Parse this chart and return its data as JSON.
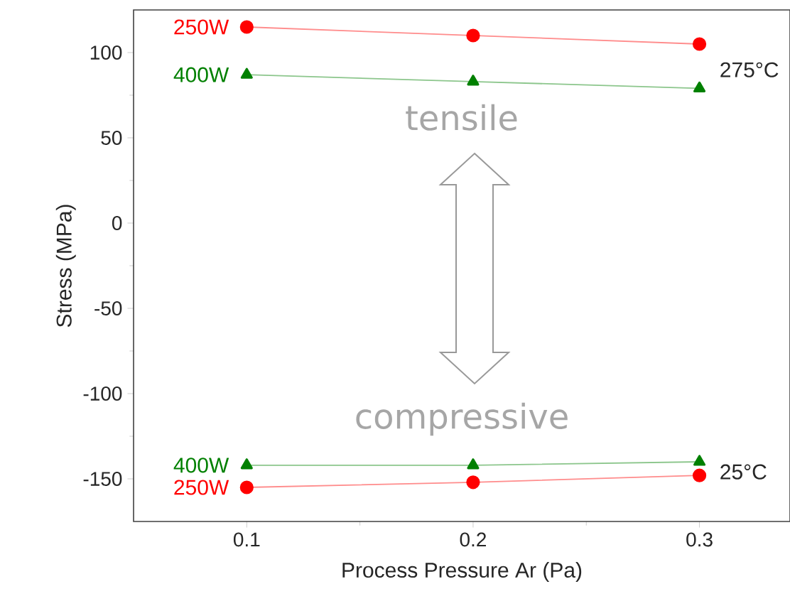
{
  "chart_data": {
    "type": "line",
    "xlabel": "Process Pressure Ar (Pa)",
    "ylabel": "Stress (MPa)",
    "x": [
      0.1,
      0.2,
      0.3
    ],
    "series": [
      {
        "name": "250W",
        "color": "#ff0000",
        "marker": "circle",
        "values": [
          115,
          110,
          105
        ]
      },
      {
        "name": "400W",
        "color": "#008000",
        "marker": "triangle",
        "values": [
          87,
          83,
          79
        ]
      },
      {
        "name": "400W",
        "color": "#008000",
        "marker": "triangle",
        "values": [
          -142,
          -142,
          -140
        ]
      },
      {
        "name": "250W",
        "color": "#ff0000",
        "marker": "circle",
        "values": [
          -155,
          -152,
          -148
        ]
      }
    ],
    "xlim": [
      0.05,
      0.34
    ],
    "ylim": [
      -175,
      125
    ],
    "xticks": [
      0.1,
      0.2,
      0.3
    ],
    "yticks": [
      -150,
      -100,
      -50,
      0,
      50,
      100
    ],
    "grid": false,
    "line_style": "solid",
    "annotations": [
      "275°C",
      "25°C",
      "tensile",
      "compressive"
    ]
  }
}
